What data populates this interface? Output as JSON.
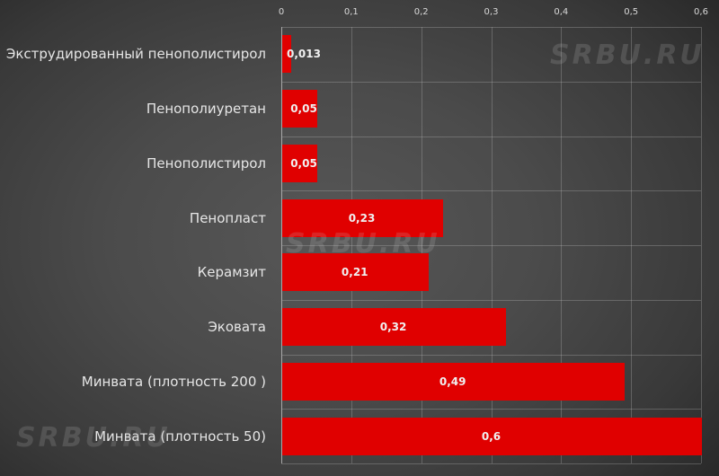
{
  "chart_data": {
    "type": "bar",
    "orientation": "horizontal",
    "title": "",
    "xlabel": "",
    "ylabel": "",
    "xlim": [
      0,
      0.6
    ],
    "x_ticks": [
      "0",
      "0,1",
      "0,2",
      "0,3",
      "0,4",
      "0,5",
      "0,6"
    ],
    "x_axis_position": "top",
    "grid": true,
    "legend": null,
    "categories": [
      "Экструдированный пенополистирол",
      "Пенополиуретан",
      "Пенополистирол",
      "Пенопласт",
      "Керамзит",
      "Эковата",
      "Минвата (плотность 200 )",
      "Минвата (плотность 50)"
    ],
    "values": [
      0.013,
      0.05,
      0.05,
      0.23,
      0.21,
      0.32,
      0.49,
      0.6
    ],
    "value_labels": [
      "0,013",
      "0,05",
      "0,05",
      "0,23",
      "0,21",
      "0,32",
      "0,49",
      "0,6"
    ],
    "bar_color": "#e00000"
  },
  "watermark": "SRBU.RU"
}
